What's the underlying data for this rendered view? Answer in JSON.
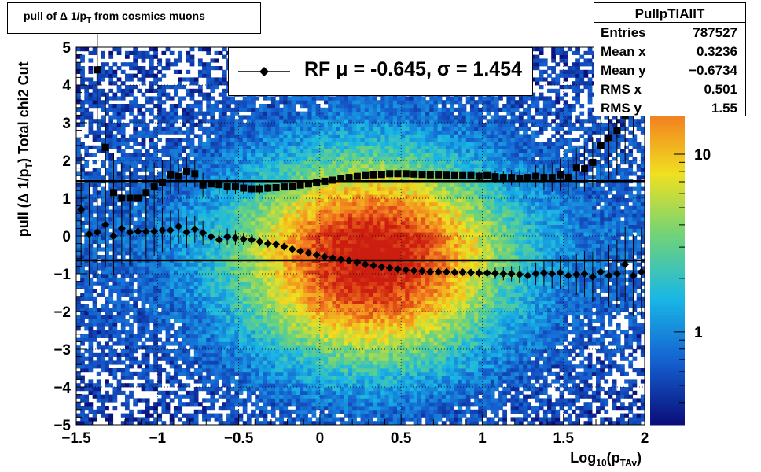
{
  "title": {
    "prefix": "pull of Δ 1/p",
    "sub": "T",
    "suffix": " from cosmics muons"
  },
  "stats": {
    "name": "PullpTIAllT",
    "rows": [
      {
        "label": "Entries",
        "value": "787527"
      },
      {
        "label": "Mean x",
        "value": "0.3236"
      },
      {
        "label": "Mean y",
        "value": "−0.6734"
      },
      {
        "label": "RMS x",
        "value": "0.501"
      },
      {
        "label": "RMS y",
        "value": "1.55"
      }
    ]
  },
  "legend": {
    "text": "RF μ = -0.645, σ =   1.454"
  },
  "axes": {
    "x_title": {
      "prefix": "Log",
      "sub1": "10",
      "mid": "(p",
      "sub2": "TAv",
      "suffix": ")"
    },
    "y_title": {
      "prefix": "pull (Δ 1/p",
      "sub": "T",
      "suffix": ")  Total chi2 Cut"
    }
  },
  "colors": {
    "markers": "#000000",
    "lines": "#000000",
    "palette": [
      "#0a0f7a",
      "#1560d0",
      "#19b7e6",
      "#6ed37a",
      "#f0e020",
      "#f37a20",
      "#cc1e10"
    ]
  },
  "chart_data": {
    "type": "heatmap",
    "title": "pull of Δ 1/pT from cosmics muons",
    "xlabel": "Log10(pTAv)",
    "ylabel": "pull (Δ 1/pT)  Total chi2 Cut",
    "xlim": [
      -1.5,
      2
    ],
    "ylim": [
      -5,
      5
    ],
    "x_ticks": [
      "−1.5",
      "−1",
      "−0.5",
      "0",
      "0.5",
      "1",
      "1.5",
      "2"
    ],
    "y_ticks": [
      "5",
      "4",
      "3",
      "2",
      "1",
      "0",
      "−1",
      "−2",
      "−3",
      "−4",
      "−5"
    ],
    "colorbar": {
      "scale": "log",
      "labels": [
        "1",
        "10"
      ]
    },
    "grid": true,
    "heatmap_peak": {
      "x": 0.32,
      "y": -0.67
    },
    "series": [
      {
        "name": "mean",
        "marker": "diamond",
        "points": [
          [
            -1.47,
            0.7
          ],
          [
            -1.42,
            0.05
          ],
          [
            -1.37,
            0.1
          ],
          [
            -1.32,
            0.3
          ],
          [
            -1.27,
            0.0
          ],
          [
            -1.22,
            0.2
          ],
          [
            -1.17,
            0.1
          ],
          [
            -1.12,
            0.12
          ],
          [
            -1.07,
            0.12
          ],
          [
            -1.02,
            0.12
          ],
          [
            -0.97,
            0.15
          ],
          [
            -0.92,
            0.15
          ],
          [
            -0.87,
            0.25
          ],
          [
            -0.82,
            0.1
          ],
          [
            -0.77,
            0.18
          ],
          [
            -0.72,
            0.08
          ],
          [
            -0.67,
            -0.02
          ],
          [
            -0.62,
            -0.1
          ],
          [
            -0.57,
            -0.02
          ],
          [
            -0.52,
            -0.05
          ],
          [
            -0.47,
            -0.08
          ],
          [
            -0.42,
            -0.1
          ],
          [
            -0.37,
            -0.15
          ],
          [
            -0.32,
            -0.2
          ],
          [
            -0.27,
            -0.22
          ],
          [
            -0.22,
            -0.28
          ],
          [
            -0.17,
            -0.35
          ],
          [
            -0.12,
            -0.4
          ],
          [
            -0.07,
            -0.45
          ],
          [
            -0.02,
            -0.5
          ],
          [
            0.03,
            -0.55
          ],
          [
            0.08,
            -0.58
          ],
          [
            0.13,
            -0.62
          ],
          [
            0.18,
            -0.65
          ],
          [
            0.23,
            -0.7
          ],
          [
            0.28,
            -0.75
          ],
          [
            0.33,
            -0.78
          ],
          [
            0.38,
            -0.82
          ],
          [
            0.43,
            -0.85
          ],
          [
            0.48,
            -0.88
          ],
          [
            0.53,
            -0.9
          ],
          [
            0.58,
            -0.92
          ],
          [
            0.63,
            -0.93
          ],
          [
            0.68,
            -0.95
          ],
          [
            0.73,
            -0.95
          ],
          [
            0.78,
            -0.95
          ],
          [
            0.83,
            -0.96
          ],
          [
            0.88,
            -0.96
          ],
          [
            0.93,
            -0.97
          ],
          [
            0.98,
            -0.98
          ],
          [
            1.03,
            -0.98
          ],
          [
            1.08,
            -0.99
          ],
          [
            1.13,
            -1.0
          ],
          [
            1.18,
            -1.0
          ],
          [
            1.23,
            -1.02
          ],
          [
            1.28,
            -1.05
          ],
          [
            1.33,
            -1.0
          ],
          [
            1.38,
            -0.98
          ],
          [
            1.43,
            -1.0
          ],
          [
            1.48,
            -0.97
          ],
          [
            1.53,
            -1.05
          ],
          [
            1.58,
            -1.02
          ],
          [
            1.63,
            -1.0
          ],
          [
            1.68,
            -1.08
          ],
          [
            1.73,
            -0.95
          ],
          [
            1.78,
            -1.05
          ],
          [
            1.83,
            -1.0
          ],
          [
            1.88,
            -0.75
          ],
          [
            1.93,
            -1.05
          ],
          [
            1.98,
            -0.95
          ]
        ]
      },
      {
        "name": "rms",
        "marker": "square",
        "points": [
          [
            -1.37,
            4.4
          ],
          [
            -1.32,
            2.35
          ],
          [
            -1.27,
            1.15
          ],
          [
            -1.22,
            1.0
          ],
          [
            -1.17,
            1.0
          ],
          [
            -1.12,
            1.0
          ],
          [
            -1.07,
            1.15
          ],
          [
            -1.02,
            1.3
          ],
          [
            -0.97,
            1.42
          ],
          [
            -0.92,
            1.62
          ],
          [
            -0.87,
            1.58
          ],
          [
            -0.82,
            1.7
          ],
          [
            -0.77,
            1.65
          ],
          [
            -0.72,
            1.35
          ],
          [
            -0.67,
            1.38
          ],
          [
            -0.62,
            1.36
          ],
          [
            -0.57,
            1.32
          ],
          [
            -0.52,
            1.3
          ],
          [
            -0.47,
            1.27
          ],
          [
            -0.42,
            1.25
          ],
          [
            -0.37,
            1.25
          ],
          [
            -0.32,
            1.27
          ],
          [
            -0.27,
            1.28
          ],
          [
            -0.22,
            1.3
          ],
          [
            -0.17,
            1.32
          ],
          [
            -0.12,
            1.35
          ],
          [
            -0.07,
            1.38
          ],
          [
            -0.02,
            1.42
          ],
          [
            0.03,
            1.45
          ],
          [
            0.08,
            1.48
          ],
          [
            0.13,
            1.52
          ],
          [
            0.18,
            1.55
          ],
          [
            0.23,
            1.58
          ],
          [
            0.28,
            1.6
          ],
          [
            0.33,
            1.62
          ],
          [
            0.38,
            1.63
          ],
          [
            0.43,
            1.65
          ],
          [
            0.48,
            1.65
          ],
          [
            0.53,
            1.65
          ],
          [
            0.58,
            1.64
          ],
          [
            0.63,
            1.63
          ],
          [
            0.68,
            1.62
          ],
          [
            0.73,
            1.62
          ],
          [
            0.78,
            1.61
          ],
          [
            0.83,
            1.6
          ],
          [
            0.88,
            1.6
          ],
          [
            0.93,
            1.6
          ],
          [
            0.98,
            1.58
          ],
          [
            1.03,
            1.6
          ],
          [
            1.08,
            1.57
          ],
          [
            1.13,
            1.55
          ],
          [
            1.18,
            1.55
          ],
          [
            1.23,
            1.53
          ],
          [
            1.28,
            1.55
          ],
          [
            1.33,
            1.58
          ],
          [
            1.38,
            1.55
          ],
          [
            1.43,
            1.55
          ],
          [
            1.48,
            1.62
          ],
          [
            1.53,
            1.55
          ],
          [
            1.58,
            1.8
          ],
          [
            1.63,
            1.78
          ],
          [
            1.68,
            1.95
          ],
          [
            1.73,
            2.4
          ],
          [
            1.78,
            2.6
          ],
          [
            1.83,
            2.8
          ],
          [
            1.88,
            3.2
          ],
          [
            1.93,
            4.0
          ]
        ]
      }
    ],
    "reference_lines": [
      1.454,
      -0.645
    ]
  }
}
